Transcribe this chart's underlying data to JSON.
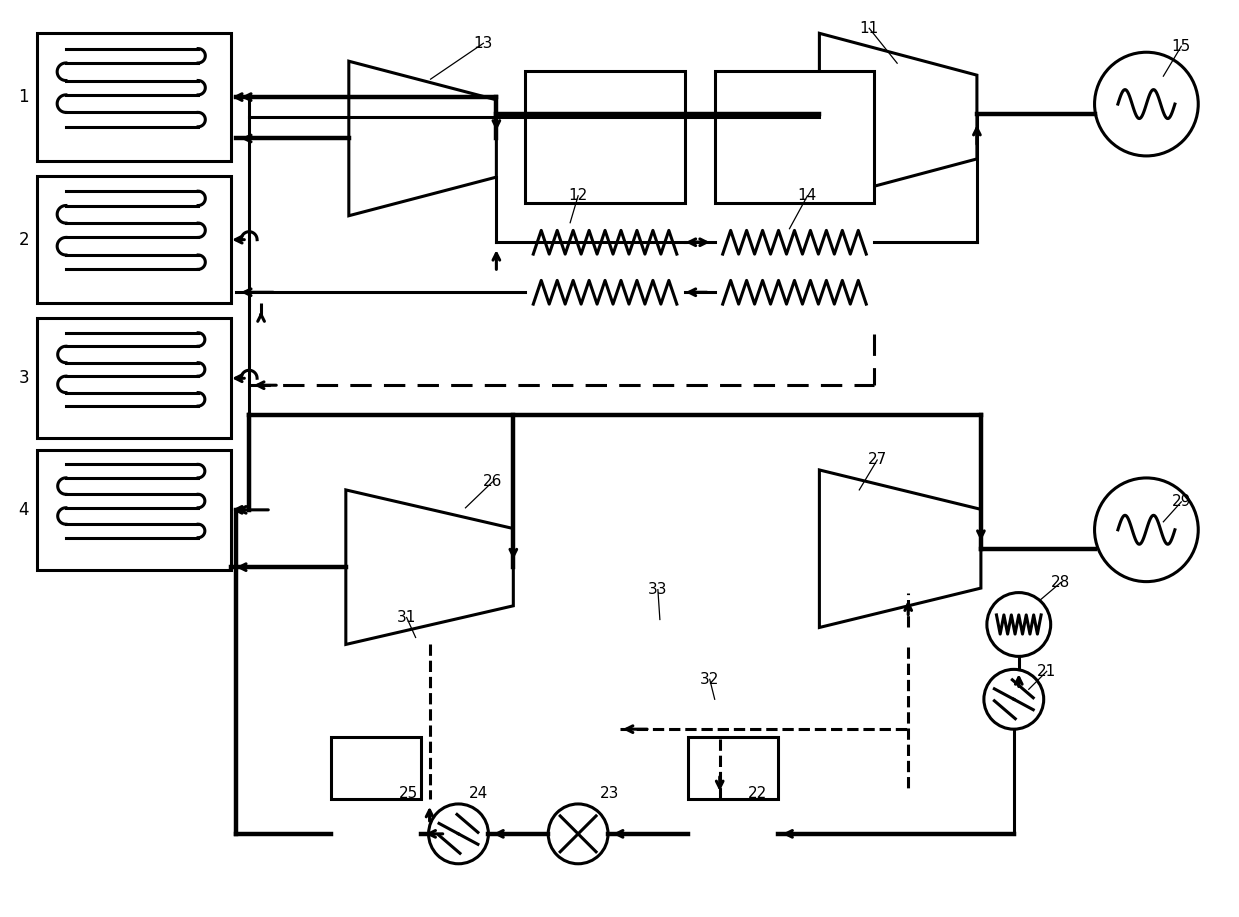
{
  "bg_color": "#ffffff",
  "lc": "#000000",
  "lw": 2.2,
  "tlw": 3.2,
  "figsize": [
    12.39,
    9.17
  ],
  "dpi": 100
}
